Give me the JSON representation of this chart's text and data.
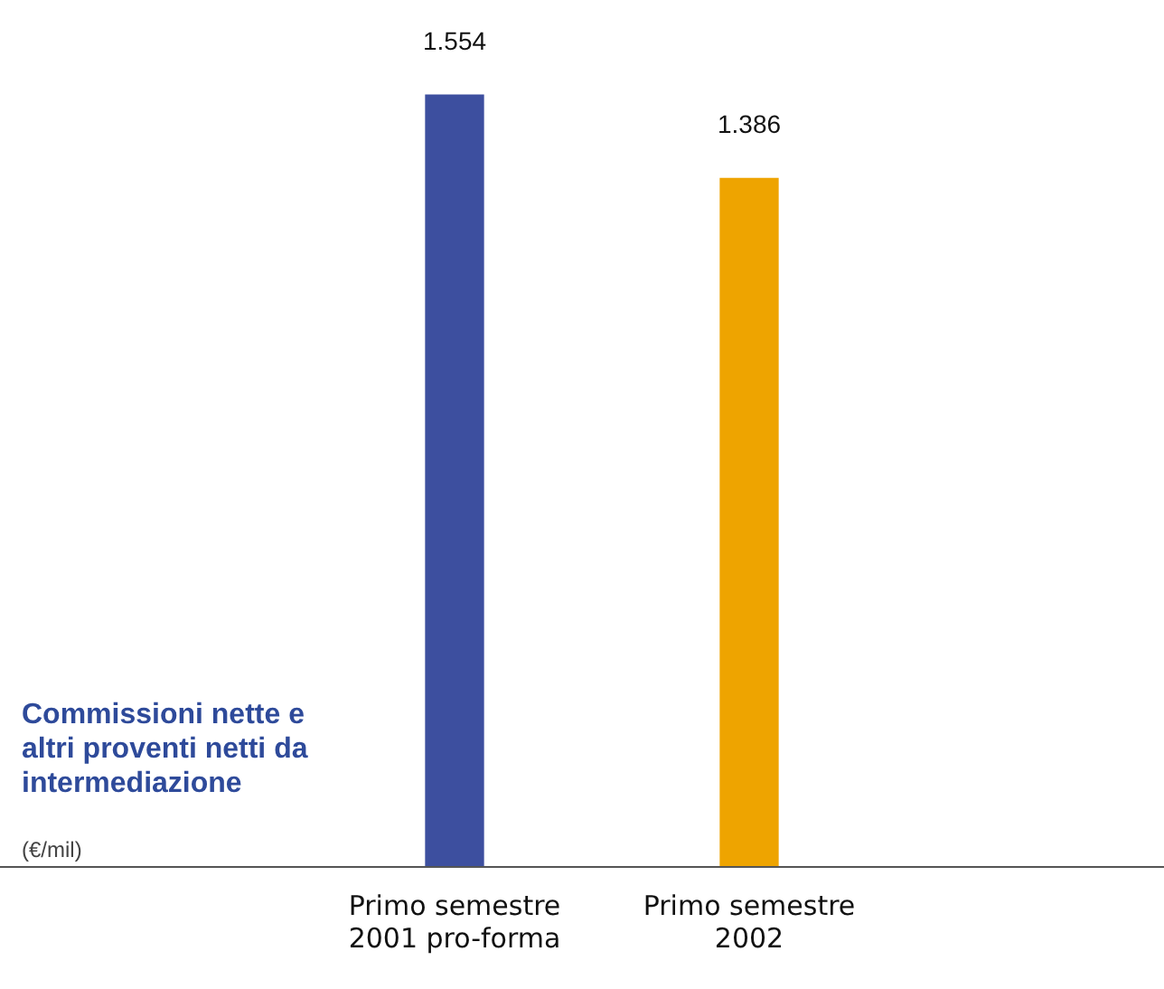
{
  "chart_data": {
    "type": "bar",
    "title": "Commissioni nette e altri proventi netti da intermediazione",
    "subtitle": "(€/mil)",
    "categories": [
      "Primo semestre 2001 pro-forma",
      "Primo semestre 2002"
    ],
    "values": [
      1554,
      1386
    ],
    "value_labels": [
      "1.554",
      "1.386"
    ],
    "colors": [
      "#3d4f9f",
      "#eea400"
    ],
    "grid": false,
    "legend": false
  }
}
